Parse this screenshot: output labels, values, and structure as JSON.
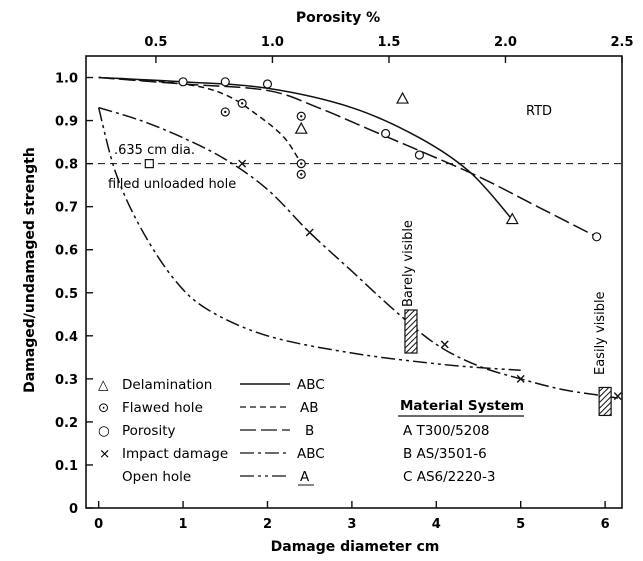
{
  "chart_data": {
    "type": "line",
    "xlabel": "Damage diameter cm",
    "ylabel": "Damaged/undamaged strength",
    "top_xlabel": "Porosity %",
    "xlim": [
      -0.15,
      6.2
    ],
    "ylim": [
      0,
      1.05
    ],
    "top_xlim": [
      0.2,
      2.5
    ],
    "x_ticks": [
      "0",
      "1",
      "2",
      "3",
      "4",
      "5",
      "6"
    ],
    "y_ticks": [
      "0",
      "0.1",
      "0.2",
      "0.3",
      "0.4",
      "0.5",
      "0.6",
      "0.7",
      "0.8",
      "0.9",
      "1.0"
    ],
    "top_ticks": [
      "0.5",
      "1.0",
      "1.5",
      "2.0",
      "2.5"
    ],
    "grid": false,
    "annotations": {
      "rtd": "RTD",
      "hole_line1": ".635 cm dia.",
      "hole_line2": "filled unloaded hole",
      "barely_visible": "Barely visible",
      "easily_visible": "Easily visible"
    },
    "reference_line": {
      "y": 0.8,
      "style": "dashed"
    },
    "legend": [
      {
        "marker": "△",
        "label": "Delamination",
        "line_label": "ABC",
        "style": "solid"
      },
      {
        "marker": "⊙",
        "label": "Flawed hole",
        "line_label": "AB",
        "style": "dashed"
      },
      {
        "marker": "○",
        "label": "Porosity",
        "line_label": "B",
        "style": "longdash"
      },
      {
        "marker": "×",
        "label": "Impact damage",
        "line_label": "ABC",
        "style": "dashdot"
      },
      {
        "marker": "",
        "label": "Open hole",
        "line_label": "A",
        "style": "dashdotdot"
      }
    ],
    "material_system": {
      "title": "Material System",
      "rows": [
        "A  T300/5208",
        "B AS/3501-6",
        "C AS6/2220-3"
      ]
    },
    "series": [
      {
        "style": "solid",
        "points": [
          [
            0,
            1.0
          ],
          [
            1,
            0.99
          ],
          [
            2,
            0.975
          ],
          [
            3,
            0.93
          ],
          [
            3.8,
            0.86
          ],
          [
            4.4,
            0.78
          ],
          [
            4.9,
            0.67
          ]
        ]
      },
      {
        "style": "dashed",
        "points": [
          [
            0,
            1.0
          ],
          [
            1.0,
            0.985
          ],
          [
            1.5,
            0.96
          ],
          [
            1.9,
            0.91
          ],
          [
            2.2,
            0.86
          ],
          [
            2.4,
            0.8
          ]
        ]
      },
      {
        "style": "longdash",
        "points": [
          [
            0,
            1.0
          ],
          [
            1.0,
            0.985
          ],
          [
            2.0,
            0.97
          ],
          [
            2.6,
            0.93
          ],
          [
            3.2,
            0.88
          ],
          [
            3.8,
            0.83
          ],
          [
            4.5,
            0.77
          ],
          [
            5.2,
            0.7
          ],
          [
            5.9,
            0.63
          ]
        ]
      },
      {
        "style": "dashdot",
        "points": [
          [
            0,
            0.93
          ],
          [
            0.5,
            0.9
          ],
          [
            1,
            0.86
          ],
          [
            1.5,
            0.81
          ],
          [
            2,
            0.74
          ],
          [
            2.5,
            0.64
          ],
          [
            3,
            0.55
          ],
          [
            3.5,
            0.46
          ],
          [
            4,
            0.38
          ],
          [
            4.5,
            0.33
          ],
          [
            5,
            0.3
          ],
          [
            5.5,
            0.275
          ],
          [
            6,
            0.26
          ],
          [
            6.15,
            0.255
          ]
        ]
      },
      {
        "style": "dashdotdot",
        "points": [
          [
            0,
            0.93
          ],
          [
            0.2,
            0.78
          ],
          [
            0.5,
            0.65
          ],
          [
            0.9,
            0.53
          ],
          [
            1.3,
            0.46
          ],
          [
            2,
            0.4
          ],
          [
            3,
            0.36
          ],
          [
            4,
            0.335
          ],
          [
            4.6,
            0.325
          ],
          [
            5,
            0.32
          ]
        ]
      }
    ],
    "markers": {
      "delamination": [
        [
          2.4,
          0.88
        ],
        [
          3.6,
          0.95
        ],
        [
          4.9,
          0.67
        ]
      ],
      "flawed_hole": [
        [
          1.5,
          0.92
        ],
        [
          1.7,
          0.94
        ],
        [
          2.4,
          0.91
        ],
        [
          2.4,
          0.8
        ],
        [
          2.4,
          0.775
        ]
      ],
      "porosity": [
        [
          1.0,
          0.99
        ],
        [
          1.5,
          0.99
        ],
        [
          2.0,
          0.985
        ],
        [
          3.4,
          0.87
        ],
        [
          3.8,
          0.82
        ],
        [
          5.9,
          0.63
        ]
      ],
      "impact": [
        [
          1.7,
          0.8
        ],
        [
          2.5,
          0.64
        ],
        [
          4.1,
          0.38
        ],
        [
          5.0,
          0.3
        ],
        [
          6.15,
          0.26
        ]
      ],
      "filled_hole": [
        [
          0.6,
          0.8
        ]
      ]
    },
    "visibility_bars": [
      {
        "x": 3.7,
        "y_low": 0.36,
        "y_high": 0.46
      },
      {
        "x": 6.0,
        "y_low": 0.215,
        "y_high": 0.28
      }
    ]
  }
}
